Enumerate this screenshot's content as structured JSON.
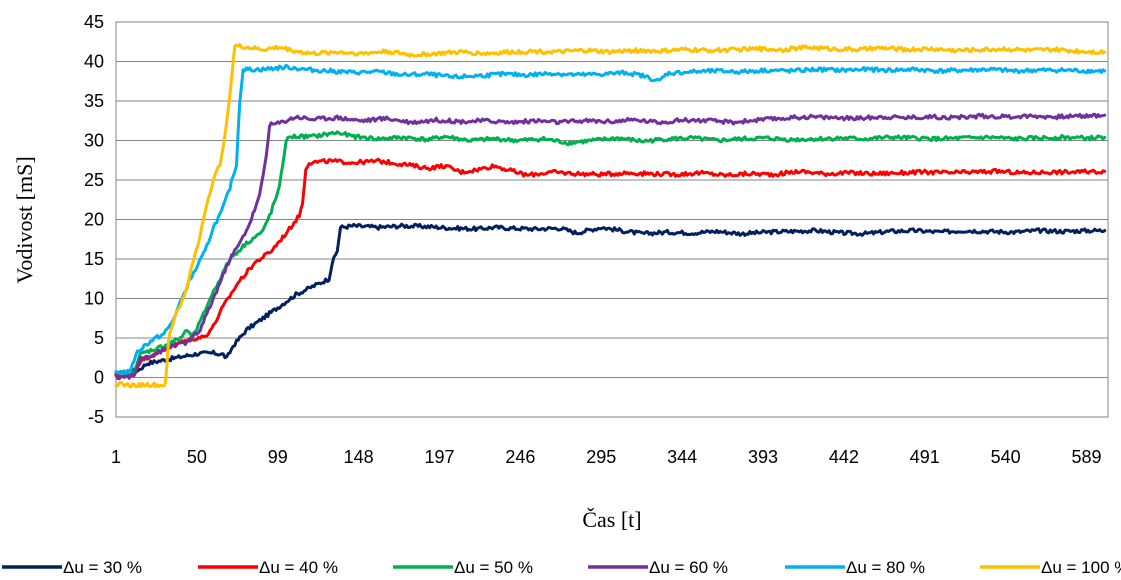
{
  "chart_data": {
    "type": "line",
    "xlabel": "Čas [t]",
    "ylabel": "Vodivost [mS]",
    "xlim": [
      1,
      602
    ],
    "ylim": [
      -5,
      45
    ],
    "y_ticks": [
      -5,
      0,
      5,
      10,
      15,
      20,
      25,
      30,
      35,
      40,
      45
    ],
    "x_ticks": [
      1,
      50,
      99,
      148,
      197,
      246,
      295,
      344,
      393,
      442,
      491,
      540,
      589
    ],
    "grid": "horizontal",
    "legend_position": "bottom",
    "series": [
      {
        "name": "Δu = 30 %",
        "color": "#002060",
        "points": [
          [
            1,
            0.3
          ],
          [
            15,
            1.0
          ],
          [
            20,
            1.8
          ],
          [
            30,
            2.2
          ],
          [
            40,
            2.6
          ],
          [
            50,
            3.0
          ],
          [
            60,
            3.1
          ],
          [
            66,
            2.9
          ],
          [
            68,
            2.4
          ],
          [
            72,
            4.0
          ],
          [
            80,
            6.0
          ],
          [
            90,
            7.5
          ],
          [
            100,
            9.0
          ],
          [
            110,
            10.5
          ],
          [
            120,
            11.5
          ],
          [
            130,
            12.5
          ],
          [
            132,
            14.5
          ],
          [
            135,
            16.0
          ],
          [
            137,
            19.0
          ],
          [
            145,
            19.2
          ],
          [
            160,
            19.0
          ],
          [
            175,
            19.2
          ],
          [
            190,
            19.1
          ],
          [
            205,
            18.9
          ],
          [
            220,
            18.8
          ],
          [
            230,
            19.0
          ],
          [
            240,
            18.9
          ],
          [
            255,
            18.8
          ],
          [
            270,
            18.9
          ],
          [
            280,
            18.3
          ],
          [
            295,
            19.0
          ],
          [
            310,
            18.5
          ],
          [
            320,
            18.2
          ],
          [
            335,
            18.4
          ],
          [
            350,
            18.3
          ],
          [
            365,
            18.5
          ],
          [
            380,
            18.2
          ],
          [
            395,
            18.4
          ],
          [
            410,
            18.5
          ],
          [
            425,
            18.6
          ],
          [
            440,
            18.3
          ],
          [
            455,
            18.2
          ],
          [
            470,
            18.5
          ],
          [
            485,
            18.6
          ],
          [
            500,
            18.4
          ],
          [
            515,
            18.6
          ],
          [
            530,
            18.5
          ],
          [
            545,
            18.4
          ],
          [
            560,
            18.6
          ],
          [
            575,
            18.5
          ],
          [
            590,
            18.6
          ],
          [
            600,
            18.6
          ]
        ]
      },
      {
        "name": "Δu = 40 %",
        "color": "#ff0000",
        "points": [
          [
            1,
            0.2
          ],
          [
            12,
            0.5
          ],
          [
            16,
            2.2
          ],
          [
            25,
            3.0
          ],
          [
            35,
            4.0
          ],
          [
            45,
            4.8
          ],
          [
            55,
            5.2
          ],
          [
            60,
            6.5
          ],
          [
            66,
            9.0
          ],
          [
            75,
            12.0
          ],
          [
            85,
            14.5
          ],
          [
            95,
            16.0
          ],
          [
            105,
            18.5
          ],
          [
            112,
            20.5
          ],
          [
            114,
            22.0
          ],
          [
            116,
            26.5
          ],
          [
            118,
            27.2
          ],
          [
            130,
            27.4
          ],
          [
            145,
            27.2
          ],
          [
            160,
            27.4
          ],
          [
            175,
            27.0
          ],
          [
            190,
            26.5
          ],
          [
            200,
            26.8
          ],
          [
            210,
            26.0
          ],
          [
            220,
            26.3
          ],
          [
            230,
            26.8
          ],
          [
            240,
            26.2
          ],
          [
            250,
            25.6
          ],
          [
            265,
            26.0
          ],
          [
            280,
            25.8
          ],
          [
            295,
            25.7
          ],
          [
            310,
            25.9
          ],
          [
            325,
            25.8
          ],
          [
            340,
            25.7
          ],
          [
            355,
            25.9
          ],
          [
            370,
            25.6
          ],
          [
            385,
            25.8
          ],
          [
            400,
            25.7
          ],
          [
            415,
            26.1
          ],
          [
            430,
            25.8
          ],
          [
            445,
            25.9
          ],
          [
            460,
            25.8
          ],
          [
            475,
            25.9
          ],
          [
            490,
            26.0
          ],
          [
            505,
            25.9
          ],
          [
            520,
            26.0
          ],
          [
            535,
            26.1
          ],
          [
            550,
            25.9
          ],
          [
            565,
            26.0
          ],
          [
            580,
            26.0
          ],
          [
            600,
            26.1
          ]
        ]
      },
      {
        "name": "Δu = 50 %",
        "color": "#00b050",
        "points": [
          [
            1,
            0.5
          ],
          [
            12,
            0.8
          ],
          [
            16,
            3.0
          ],
          [
            30,
            4.0
          ],
          [
            40,
            5.0
          ],
          [
            44,
            6.0
          ],
          [
            47,
            5.0
          ],
          [
            52,
            7.0
          ],
          [
            58,
            10.0
          ],
          [
            64,
            12.5
          ],
          [
            70,
            15.0
          ],
          [
            80,
            17.0
          ],
          [
            90,
            18.5
          ],
          [
            95,
            21.0
          ],
          [
            100,
            24.0
          ],
          [
            102,
            27.0
          ],
          [
            104,
            30.0
          ],
          [
            107,
            30.5
          ],
          [
            120,
            30.5
          ],
          [
            135,
            31.0
          ],
          [
            145,
            30.5
          ],
          [
            160,
            30.2
          ],
          [
            175,
            30.4
          ],
          [
            190,
            30.1
          ],
          [
            200,
            30.5
          ],
          [
            215,
            30.0
          ],
          [
            230,
            30.2
          ],
          [
            245,
            30.0
          ],
          [
            260,
            30.2
          ],
          [
            275,
            29.7
          ],
          [
            290,
            30.0
          ],
          [
            305,
            30.3
          ],
          [
            320,
            29.9
          ],
          [
            335,
            30.2
          ],
          [
            350,
            30.3
          ],
          [
            365,
            30.0
          ],
          [
            380,
            30.2
          ],
          [
            395,
            30.3
          ],
          [
            410,
            30.1
          ],
          [
            425,
            30.2
          ],
          [
            440,
            30.3
          ],
          [
            455,
            30.2
          ],
          [
            470,
            30.4
          ],
          [
            485,
            30.3
          ],
          [
            500,
            30.2
          ],
          [
            515,
            30.3
          ],
          [
            530,
            30.4
          ],
          [
            545,
            30.2
          ],
          [
            560,
            30.3
          ],
          [
            575,
            30.4
          ],
          [
            590,
            30.3
          ],
          [
            600,
            30.4
          ]
        ]
      },
      {
        "name": "Δu = 60 %",
        "color": "#7030a0",
        "points": [
          [
            1,
            0.0
          ],
          [
            12,
            0.2
          ],
          [
            16,
            2.5
          ],
          [
            25,
            3.0
          ],
          [
            35,
            4.0
          ],
          [
            45,
            4.5
          ],
          [
            52,
            6.0
          ],
          [
            58,
            9.0
          ],
          [
            64,
            12.0
          ],
          [
            70,
            15.0
          ],
          [
            76,
            17.0
          ],
          [
            82,
            19.5
          ],
          [
            88,
            23.0
          ],
          [
            92,
            28.0
          ],
          [
            94,
            32.0
          ],
          [
            100,
            32.2
          ],
          [
            110,
            33.0
          ],
          [
            120,
            32.7
          ],
          [
            135,
            32.9
          ],
          [
            150,
            32.5
          ],
          [
            165,
            32.8
          ],
          [
            180,
            32.3
          ],
          [
            195,
            32.6
          ],
          [
            210,
            32.4
          ],
          [
            225,
            32.5
          ],
          [
            240,
            32.3
          ],
          [
            255,
            32.5
          ],
          [
            270,
            32.3
          ],
          [
            285,
            32.5
          ],
          [
            300,
            32.4
          ],
          [
            315,
            32.6
          ],
          [
            330,
            32.3
          ],
          [
            345,
            32.6
          ],
          [
            360,
            32.5
          ],
          [
            375,
            32.3
          ],
          [
            390,
            32.6
          ],
          [
            405,
            32.8
          ],
          [
            420,
            33.0
          ],
          [
            435,
            32.9
          ],
          [
            450,
            32.8
          ],
          [
            465,
            33.0
          ],
          [
            480,
            32.9
          ],
          [
            495,
            33.0
          ],
          [
            510,
            32.9
          ],
          [
            525,
            33.1
          ],
          [
            540,
            33.0
          ],
          [
            555,
            33.1
          ],
          [
            570,
            33.0
          ],
          [
            585,
            33.1
          ],
          [
            600,
            33.2
          ]
        ]
      },
      {
        "name": "Δu = 80 %",
        "color": "#00b0f0",
        "points": [
          [
            1,
            0.5
          ],
          [
            10,
            0.8
          ],
          [
            13,
            3.0
          ],
          [
            18,
            4.0
          ],
          [
            25,
            5.0
          ],
          [
            30,
            5.5
          ],
          [
            35,
            7.0
          ],
          [
            40,
            9.5
          ],
          [
            45,
            12.0
          ],
          [
            50,
            14.0
          ],
          [
            55,
            16.0
          ],
          [
            60,
            19.0
          ],
          [
            65,
            21.0
          ],
          [
            70,
            24.0
          ],
          [
            74,
            27.0
          ],
          [
            76,
            35.0
          ],
          [
            78,
            39.0
          ],
          [
            90,
            39.0
          ],
          [
            105,
            39.3
          ],
          [
            115,
            39.0
          ],
          [
            130,
            38.8
          ],
          [
            145,
            38.6
          ],
          [
            160,
            38.7
          ],
          [
            175,
            38.3
          ],
          [
            190,
            38.4
          ],
          [
            205,
            38.0
          ],
          [
            220,
            38.2
          ],
          [
            235,
            38.4
          ],
          [
            250,
            38.3
          ],
          [
            265,
            38.5
          ],
          [
            280,
            38.3
          ],
          [
            295,
            38.4
          ],
          [
            310,
            38.6
          ],
          [
            320,
            38.2
          ],
          [
            330,
            37.5
          ],
          [
            335,
            38.5
          ],
          [
            350,
            38.7
          ],
          [
            365,
            38.8
          ],
          [
            380,
            38.7
          ],
          [
            395,
            38.9
          ],
          [
            410,
            38.8
          ],
          [
            425,
            39.0
          ],
          [
            440,
            38.9
          ],
          [
            455,
            39.0
          ],
          [
            470,
            38.9
          ],
          [
            485,
            39.0
          ],
          [
            500,
            38.8
          ],
          [
            515,
            38.9
          ],
          [
            530,
            39.0
          ],
          [
            545,
            38.8
          ],
          [
            560,
            38.9
          ],
          [
            575,
            38.9
          ],
          [
            590,
            38.8
          ],
          [
            600,
            38.8
          ]
        ]
      },
      {
        "name": "Δu = 100 %",
        "color": "#ffc000",
        "points": [
          [
            1,
            -0.8
          ],
          [
            10,
            -1.0
          ],
          [
            20,
            -0.9
          ],
          [
            28,
            -1.0
          ],
          [
            31,
            -0.9
          ],
          [
            33,
            5.0
          ],
          [
            37,
            8.0
          ],
          [
            42,
            10.0
          ],
          [
            47,
            14.0
          ],
          [
            52,
            18.0
          ],
          [
            56,
            22.0
          ],
          [
            60,
            25.0
          ],
          [
            64,
            27.0
          ],
          [
            68,
            32.0
          ],
          [
            71,
            38.0
          ],
          [
            73,
            42.0
          ],
          [
            80,
            41.8
          ],
          [
            90,
            41.5
          ],
          [
            100,
            41.8
          ],
          [
            110,
            41.3
          ],
          [
            120,
            41.0
          ],
          [
            135,
            41.2
          ],
          [
            150,
            41.0
          ],
          [
            165,
            41.3
          ],
          [
            180,
            40.8
          ],
          [
            195,
            41.0
          ],
          [
            210,
            41.2
          ],
          [
            225,
            41.0
          ],
          [
            240,
            41.2
          ],
          [
            255,
            41.3
          ],
          [
            270,
            41.2
          ],
          [
            285,
            41.4
          ],
          [
            300,
            41.2
          ],
          [
            315,
            41.4
          ],
          [
            330,
            41.3
          ],
          [
            345,
            41.5
          ],
          [
            360,
            41.4
          ],
          [
            375,
            41.5
          ],
          [
            390,
            41.6
          ],
          [
            405,
            41.5
          ],
          [
            420,
            41.8
          ],
          [
            435,
            41.6
          ],
          [
            450,
            41.5
          ],
          [
            465,
            41.7
          ],
          [
            480,
            41.5
          ],
          [
            495,
            41.6
          ],
          [
            510,
            41.4
          ],
          [
            525,
            41.5
          ],
          [
            540,
            41.6
          ],
          [
            555,
            41.4
          ],
          [
            570,
            41.5
          ],
          [
            585,
            41.3
          ],
          [
            600,
            41.2
          ]
        ]
      }
    ]
  }
}
